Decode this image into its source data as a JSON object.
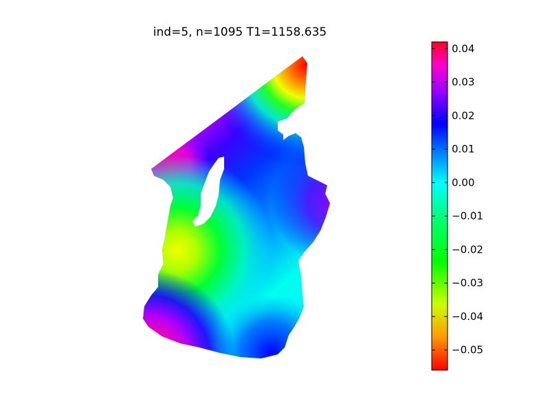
{
  "chart_data": {
    "type": "heatmap",
    "title": "ind=5, n=1095  T1=1158.635",
    "colormap": "hsv",
    "colorbar": {
      "vmin": -0.056,
      "vmax": 0.042,
      "ticks": [
        0.04,
        0.03,
        0.02,
        0.01,
        0.0,
        -0.01,
        -0.02,
        -0.03,
        -0.04,
        -0.05
      ],
      "tick_labels": [
        "0.04",
        "0.03",
        "0.02",
        "0.01",
        "0.00",
        "−0.01",
        "−0.02",
        "−0.03",
        "−0.04",
        "−0.05"
      ]
    },
    "axes_visible": false,
    "grid": false
  }
}
